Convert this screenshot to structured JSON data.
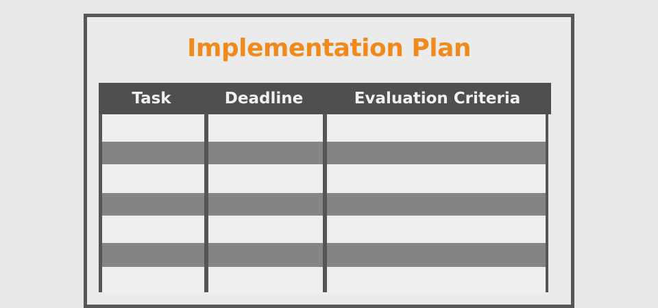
{
  "title": "Implementation Plan",
  "table": {
    "columns": [
      "Task",
      "Deadline",
      "Evaluation Criteria"
    ],
    "rows": [
      [
        "",
        "",
        ""
      ],
      [
        "",
        "",
        ""
      ],
      [
        "",
        "",
        ""
      ],
      [
        "",
        "",
        ""
      ],
      [
        "",
        "",
        ""
      ],
      [
        "",
        "",
        ""
      ],
      [
        "",
        "",
        ""
      ]
    ]
  },
  "colors": {
    "title": "#f08a1c",
    "header": "#4f4f51",
    "shaded_row": "#858585",
    "frame": "#575759"
  }
}
